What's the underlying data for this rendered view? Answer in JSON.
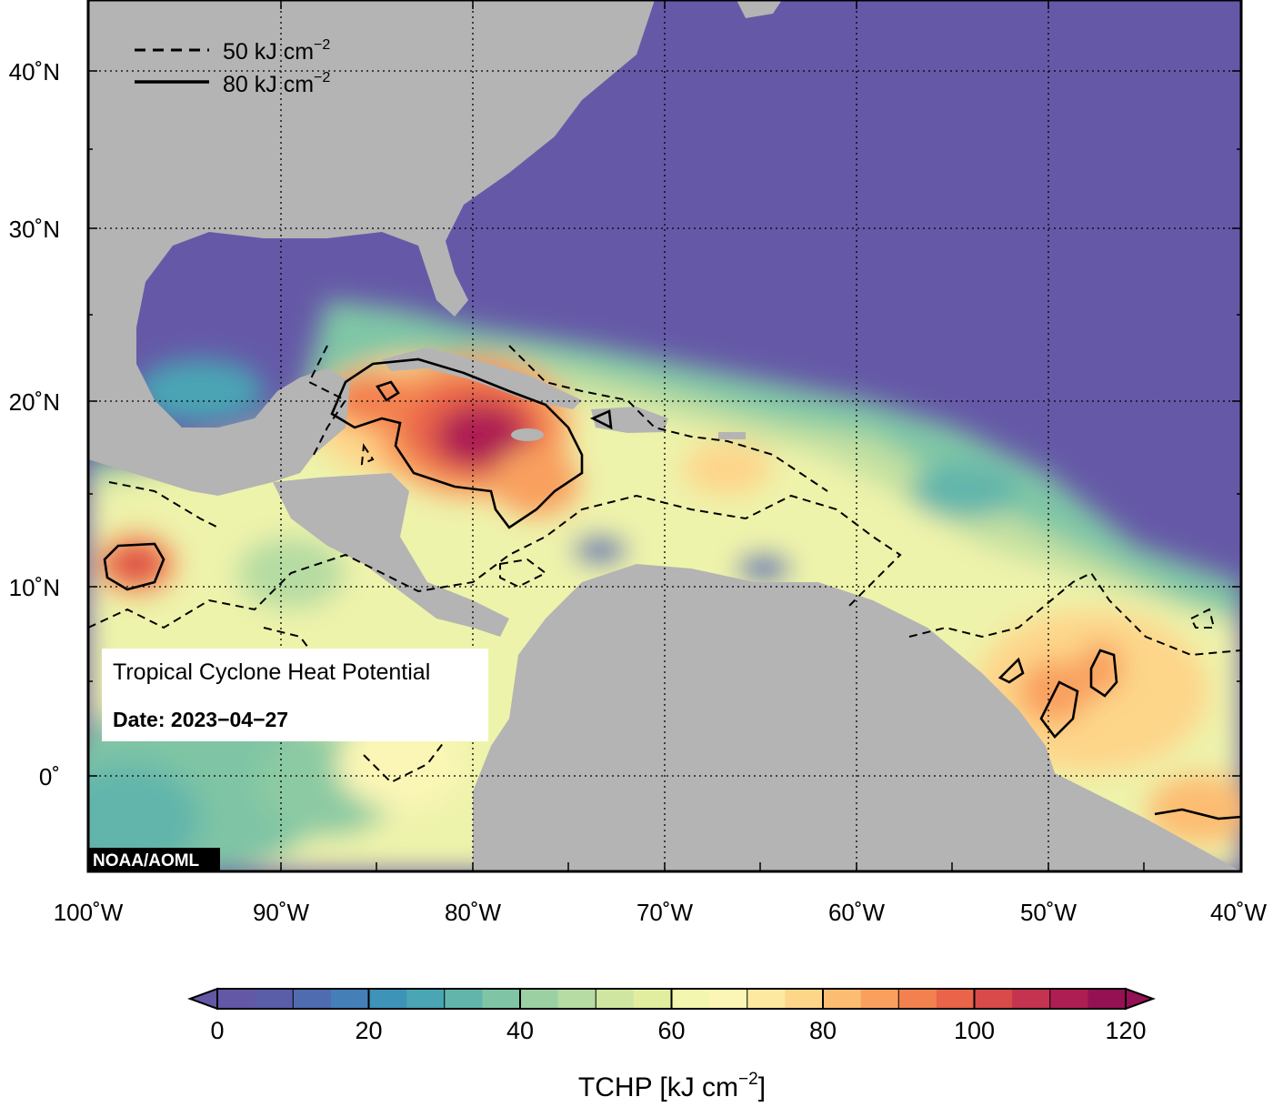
{
  "map": {
    "lon_ticks": [
      "100˚W",
      "90˚W",
      "80˚W",
      "70˚W",
      "60˚W",
      "50˚W",
      "40˚W"
    ],
    "lat_ticks": [
      "40˚N",
      "30˚N",
      "20˚N",
      "10˚N",
      "0˚"
    ],
    "legend": {
      "dashed_label": "50 kJ cm",
      "solid_label": "80 kJ cm",
      "unit_exponent": "−2"
    },
    "info_box": {
      "title": "Tropical Cyclone Heat Potential",
      "date": "Date: 2023−04−27"
    },
    "credit": "NOAA/AOML",
    "colors": {
      "land": "#b4b4b4",
      "cold_ocean": "#6559a7"
    }
  },
  "colorbar": {
    "ticks": [
      "0",
      "20",
      "40",
      "60",
      "80",
      "100",
      "120"
    ],
    "tick_values": [
      0,
      20,
      40,
      60,
      80,
      100,
      120
    ],
    "min": 0,
    "max": 120,
    "step": 5,
    "label": "TCHP [kJ cm",
    "label_exponent": "−2",
    "label_close": "]",
    "colors": [
      "#6358a6",
      "#5a5ea9",
      "#4f6cb1",
      "#447fb8",
      "#3e93b9",
      "#4aa5b4",
      "#62b5ab",
      "#7ec4a5",
      "#9bd1a2",
      "#b6dca3",
      "#cee6a0",
      "#e2ee9f",
      "#f2f6ae",
      "#fbf6b6",
      "#fde9a0",
      "#fdd68a",
      "#fcbd72",
      "#f9a05f",
      "#f3814f",
      "#e96448",
      "#d94a4a",
      "#c43350",
      "#ad1e52",
      "#941153"
    ]
  }
}
